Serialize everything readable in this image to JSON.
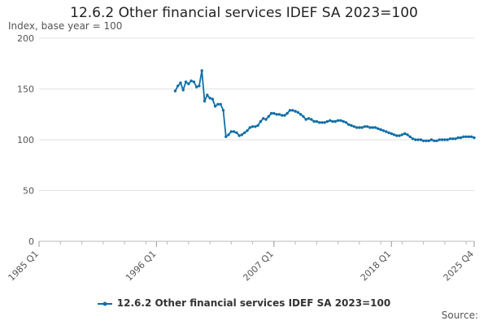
{
  "chart_data": {
    "type": "line",
    "title": "12.6.2 Other financial services IDEF SA 2023=100",
    "subtitle": "Index, base year = 100",
    "source_label": "Source:",
    "xlabel": "",
    "ylabel": "",
    "ylim": [
      0,
      200
    ],
    "y_ticks": [
      0,
      50,
      100,
      150,
      200
    ],
    "x_range": [
      1985.0,
      2025.75
    ],
    "x_ticks": [
      {
        "label": "1985 Q1",
        "x": 1985.0
      },
      {
        "label": "1996 Q1",
        "x": 1996.0
      },
      {
        "label": "2007 Q1",
        "x": 2007.0
      },
      {
        "label": "2018 Q1",
        "x": 2018.0
      },
      {
        "label": "2025 Q4",
        "x": 2025.75
      }
    ],
    "grid": "horizontal",
    "legend_position": "bottom",
    "line_color": "#0f6fa8",
    "series": [
      {
        "name": "12.6.2 Other financial services IDEF SA 2023=100",
        "points": [
          [
            1997.75,
            148
          ],
          [
            1998.0,
            153
          ],
          [
            1998.25,
            156
          ],
          [
            1998.5,
            149
          ],
          [
            1998.75,
            157
          ],
          [
            1999.0,
            155
          ],
          [
            1999.25,
            158
          ],
          [
            1999.5,
            157
          ],
          [
            1999.75,
            152
          ],
          [
            2000.0,
            153
          ],
          [
            2000.25,
            168
          ],
          [
            2000.5,
            138
          ],
          [
            2000.75,
            144
          ],
          [
            2001.0,
            141
          ],
          [
            2001.25,
            140
          ],
          [
            2001.5,
            133
          ],
          [
            2001.75,
            135
          ],
          [
            2002.0,
            135
          ],
          [
            2002.25,
            129
          ],
          [
            2002.5,
            103
          ],
          [
            2002.75,
            105
          ],
          [
            2003.0,
            108
          ],
          [
            2003.25,
            108
          ],
          [
            2003.5,
            107
          ],
          [
            2003.75,
            104
          ],
          [
            2004.0,
            105
          ],
          [
            2004.25,
            107
          ],
          [
            2004.5,
            109
          ],
          [
            2004.75,
            112
          ],
          [
            2005.0,
            113
          ],
          [
            2005.25,
            113
          ],
          [
            2005.5,
            114
          ],
          [
            2005.75,
            118
          ],
          [
            2006.0,
            121
          ],
          [
            2006.25,
            120
          ],
          [
            2006.5,
            123
          ],
          [
            2006.75,
            126
          ],
          [
            2007.0,
            126
          ],
          [
            2007.25,
            125
          ],
          [
            2007.5,
            125
          ],
          [
            2007.75,
            124
          ],
          [
            2008.0,
            124
          ],
          [
            2008.25,
            126
          ],
          [
            2008.5,
            129
          ],
          [
            2008.75,
            129
          ],
          [
            2009.0,
            128
          ],
          [
            2009.25,
            127
          ],
          [
            2009.5,
            125
          ],
          [
            2009.75,
            123
          ],
          [
            2010.0,
            120
          ],
          [
            2010.25,
            121
          ],
          [
            2010.5,
            120
          ],
          [
            2010.75,
            118
          ],
          [
            2011.0,
            118
          ],
          [
            2011.25,
            117
          ],
          [
            2011.5,
            117
          ],
          [
            2011.75,
            117
          ],
          [
            2012.0,
            118
          ],
          [
            2012.25,
            119
          ],
          [
            2012.5,
            118
          ],
          [
            2012.75,
            118
          ],
          [
            2013.0,
            119
          ],
          [
            2013.25,
            119
          ],
          [
            2013.5,
            118
          ],
          [
            2013.75,
            117
          ],
          [
            2014.0,
            115
          ],
          [
            2014.25,
            114
          ],
          [
            2014.5,
            113
          ],
          [
            2014.75,
            112
          ],
          [
            2015.0,
            112
          ],
          [
            2015.25,
            112
          ],
          [
            2015.5,
            113
          ],
          [
            2015.75,
            113
          ],
          [
            2016.0,
            112
          ],
          [
            2016.25,
            112
          ],
          [
            2016.5,
            112
          ],
          [
            2016.75,
            111
          ],
          [
            2017.0,
            110
          ],
          [
            2017.25,
            109
          ],
          [
            2017.5,
            108
          ],
          [
            2017.75,
            107
          ],
          [
            2018.0,
            106
          ],
          [
            2018.25,
            105
          ],
          [
            2018.5,
            104
          ],
          [
            2018.75,
            104
          ],
          [
            2019.0,
            105
          ],
          [
            2019.25,
            106
          ],
          [
            2019.5,
            105
          ],
          [
            2019.75,
            103
          ],
          [
            2020.0,
            101
          ],
          [
            2020.25,
            100
          ],
          [
            2020.5,
            100
          ],
          [
            2020.75,
            100
          ],
          [
            2021.0,
            99
          ],
          [
            2021.25,
            99
          ],
          [
            2021.5,
            99
          ],
          [
            2021.75,
            100
          ],
          [
            2022.0,
            99
          ],
          [
            2022.25,
            99
          ],
          [
            2022.5,
            100
          ],
          [
            2022.75,
            100
          ],
          [
            2023.0,
            100
          ],
          [
            2023.25,
            100
          ],
          [
            2023.5,
            101
          ],
          [
            2023.75,
            101
          ],
          [
            2024.0,
            101
          ],
          [
            2024.25,
            102
          ],
          [
            2024.5,
            102
          ],
          [
            2024.75,
            103
          ],
          [
            2025.0,
            103
          ],
          [
            2025.25,
            103
          ],
          [
            2025.5,
            103
          ],
          [
            2025.75,
            102
          ]
        ]
      }
    ]
  }
}
